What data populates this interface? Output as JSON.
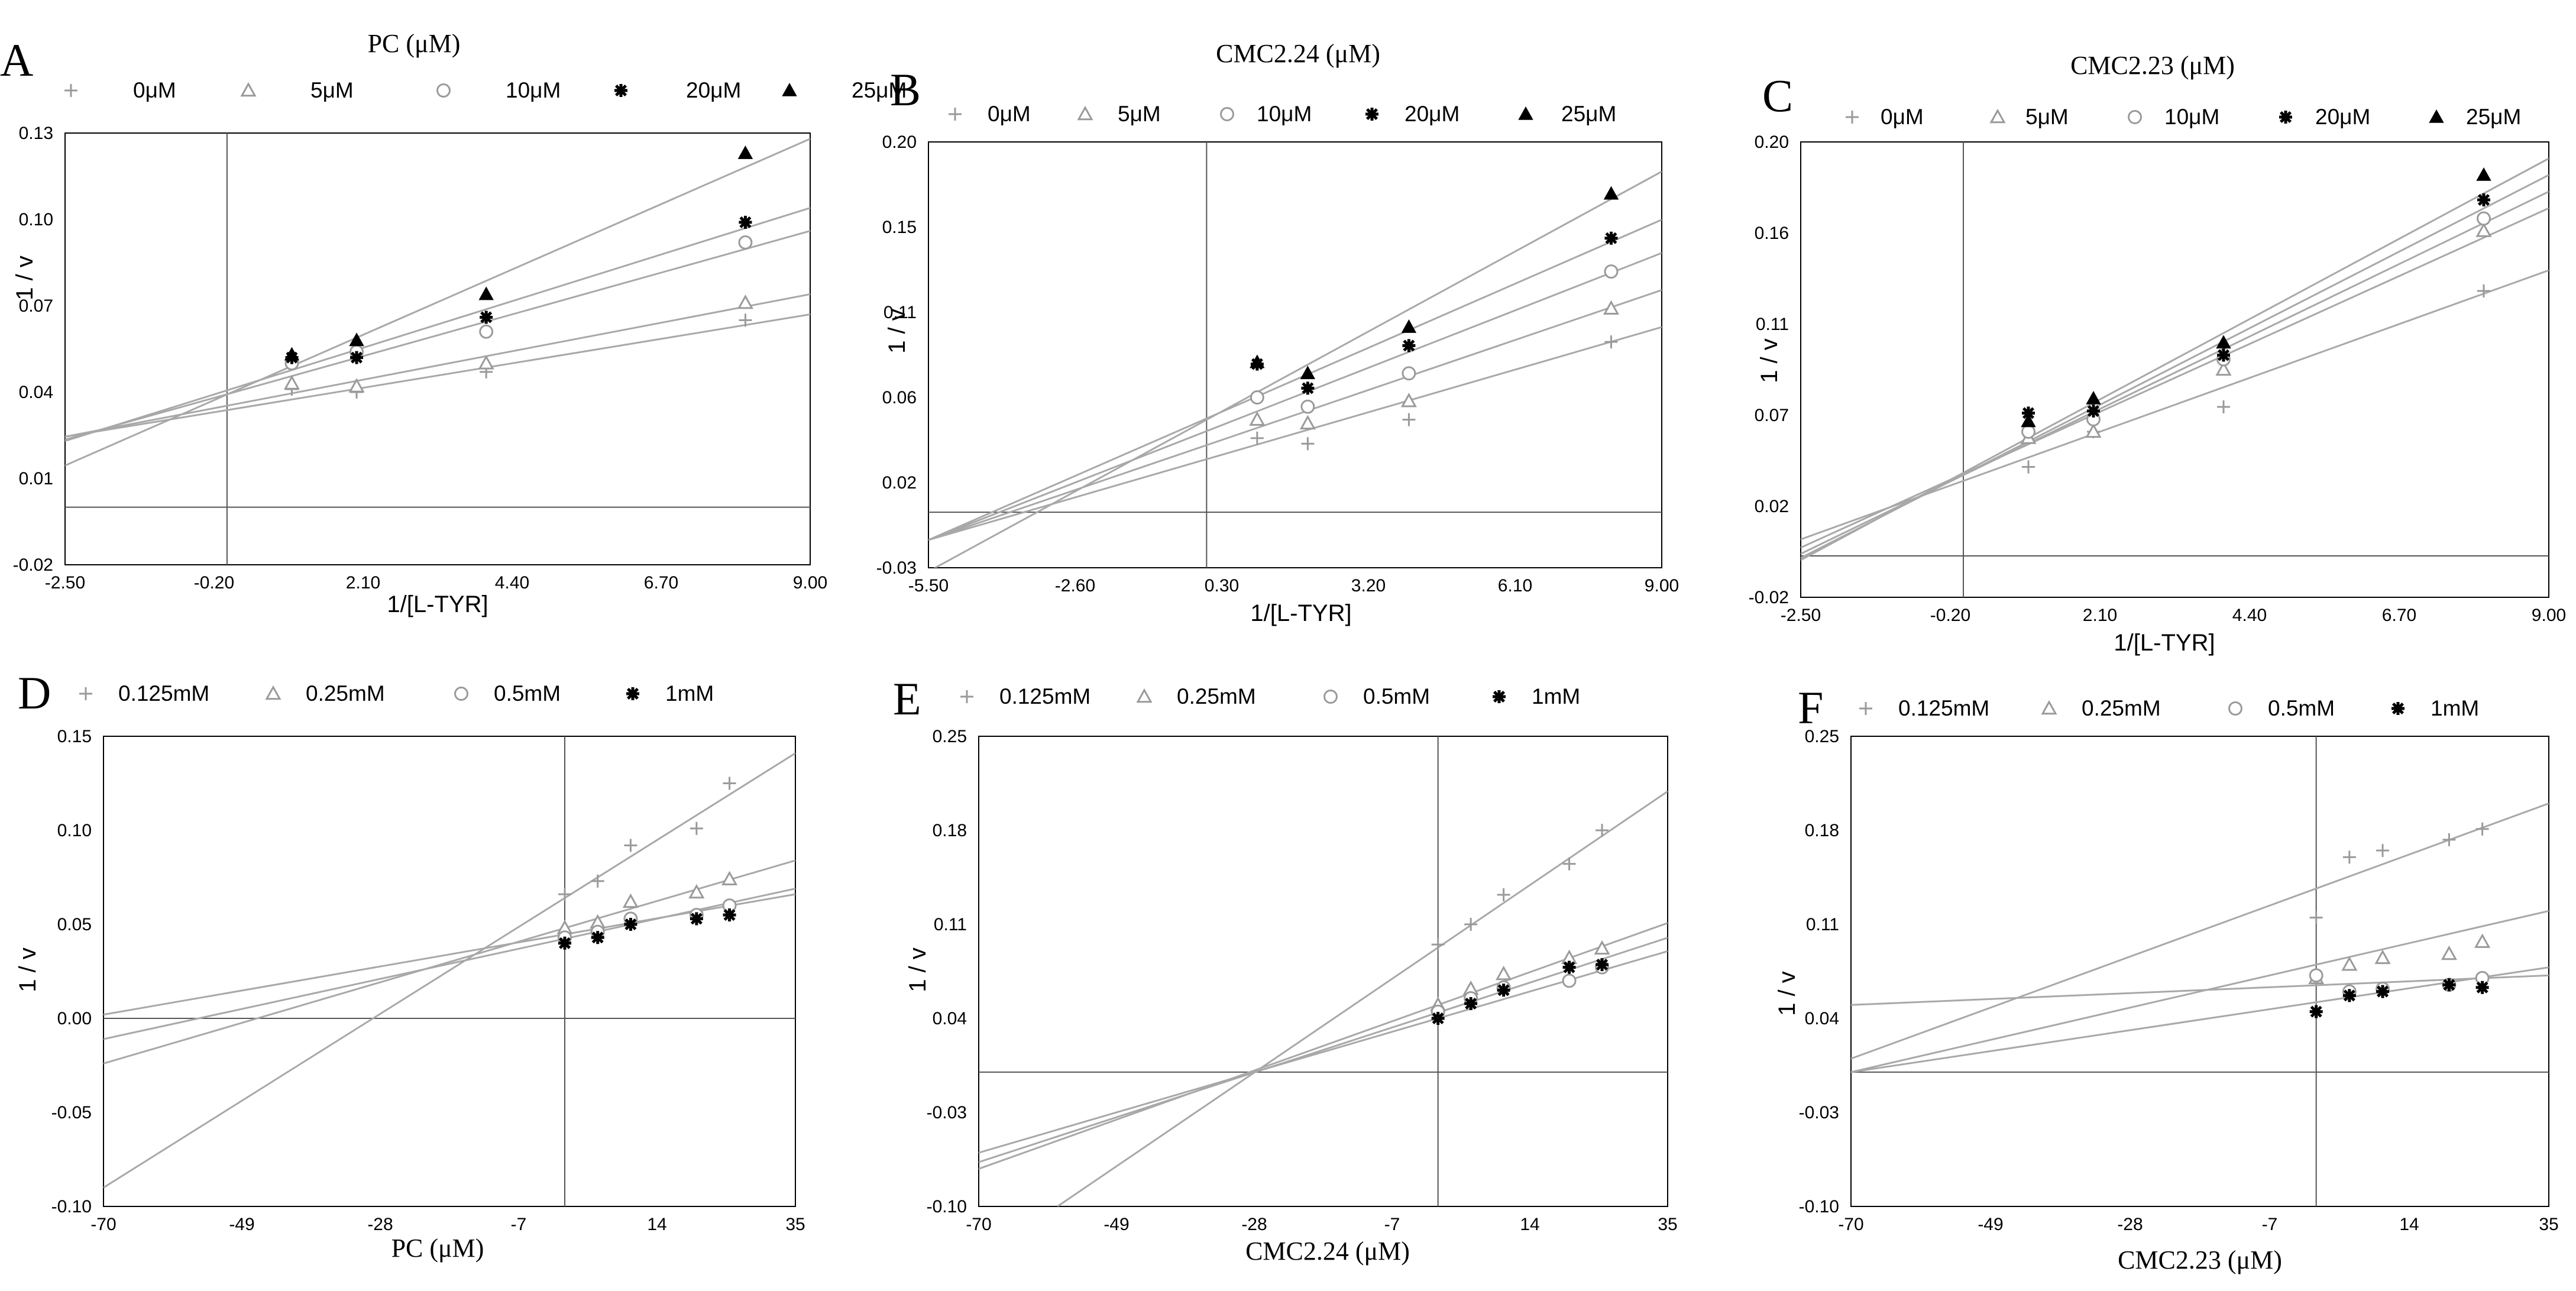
{
  "chart_data": [
    {
      "letter": "A",
      "type": "scatter",
      "title": "PC (μM)",
      "xlabel": "1/[L-TYR]",
      "ylabel": "1 / v",
      "xlim": [
        -2.5,
        9.0
      ],
      "ylim": [
        -0.02,
        0.13
      ],
      "xticks": [
        "-2.50",
        "-0.20",
        "2.10",
        "4.40",
        "6.70",
        "9.00"
      ],
      "yticks": [
        "-0.02",
        "0.01",
        "0.04",
        "0.07",
        "0.10",
        "0.13"
      ],
      "x_ref": 0.0,
      "y_ref": 0.0,
      "x": [
        1.0,
        2.0,
        4.0,
        8.0
      ],
      "series": [
        {
          "name": "0μM",
          "marker": "plus",
          "values": [
            0.041,
            0.04,
            0.047,
            0.065
          ],
          "line": [
            -2.5,
            0.0245,
            9.0,
            0.067
          ]
        },
        {
          "name": "5μM",
          "marker": "triangle",
          "values": [
            0.043,
            0.042,
            0.05,
            0.071
          ],
          "line": [
            -2.5,
            0.0245,
            9.0,
            0.074
          ]
        },
        {
          "name": "10μM",
          "marker": "circle",
          "values": [
            0.05,
            0.054,
            0.061,
            0.092
          ],
          "line": [
            -2.5,
            0.0235,
            9.0,
            0.096
          ]
        },
        {
          "name": "20μM",
          "marker": "star",
          "values": [
            0.052,
            0.052,
            0.066,
            0.099
          ],
          "line": [
            -2.5,
            0.023,
            9.0,
            0.104
          ]
        },
        {
          "name": "25μM",
          "marker": "filled-triangle",
          "values": [
            0.053,
            0.058,
            0.074,
            0.123
          ],
          "line": [
            -2.5,
            0.0145,
            9.0,
            0.128
          ]
        }
      ]
    },
    {
      "letter": "B",
      "type": "scatter",
      "title": "CMC2.24 (μM)",
      "xlabel": "1/[L-TYR]",
      "ylabel": "1 / v",
      "xlim": [
        -5.5,
        9.0
      ],
      "ylim": [
        -0.03,
        0.2
      ],
      "xticks": [
        "-5.50",
        "-2.60",
        "0.30",
        "3.20",
        "6.10",
        "9.00"
      ],
      "yticks": [
        "-0.03",
        "0.02",
        "0.06",
        "0.11",
        "0.15",
        "0.20"
      ],
      "x_ref": 0.0,
      "y_ref": 0.0,
      "x": [
        1.0,
        2.0,
        4.0,
        8.0
      ],
      "series": [
        {
          "name": "0μM",
          "marker": "plus",
          "values": [
            0.04,
            0.037,
            0.05,
            0.092
          ],
          "line": [
            -5.5,
            -0.015,
            9.0,
            0.1
          ]
        },
        {
          "name": "5μM",
          "marker": "triangle",
          "values": [
            0.05,
            0.048,
            0.06,
            0.11
          ],
          "line": [
            -5.5,
            -0.015,
            9.0,
            0.12
          ]
        },
        {
          "name": "10μM",
          "marker": "circle",
          "values": [
            0.062,
            0.057,
            0.075,
            0.13
          ],
          "line": [
            -5.5,
            -0.015,
            9.0,
            0.14
          ]
        },
        {
          "name": "20μM",
          "marker": "star",
          "values": [
            0.08,
            0.067,
            0.09,
            0.148
          ],
          "line": [
            -5.5,
            -0.015,
            9.0,
            0.158
          ]
        },
        {
          "name": "25μM",
          "marker": "filled-triangle",
          "values": [
            0.081,
            0.075,
            0.1,
            0.172
          ],
          "line": [
            -5.5,
            -0.032,
            9.0,
            0.184
          ]
        }
      ]
    },
    {
      "letter": "C",
      "type": "scatter",
      "title": "CMC2.23 (μM)",
      "xlabel": "1/[L-TYR]",
      "ylabel": "1 / v",
      "xlim": [
        -2.5,
        9.0
      ],
      "ylim": [
        -0.02,
        0.2
      ],
      "xticks": [
        "-2.50",
        "-0.20",
        "2.10",
        "4.40",
        "6.70",
        "9.00"
      ],
      "yticks": [
        "-0.02",
        "0.02",
        "0.07",
        "0.11",
        "0.16",
        "0.20"
      ],
      "x_ref": 0.0,
      "y_ref": 0.0,
      "x": [
        1.0,
        2.0,
        4.0,
        8.0
      ],
      "series": [
        {
          "name": "0μM",
          "marker": "plus",
          "values": [
            0.043,
            0.06,
            0.072,
            0.128
          ],
          "line": [
            -2.5,
            0.008,
            9.0,
            0.138
          ]
        },
        {
          "name": "5μM",
          "marker": "triangle",
          "values": [
            0.057,
            0.06,
            0.09,
            0.157
          ],
          "line": [
            -2.5,
            0.004,
            9.0,
            0.168
          ]
        },
        {
          "name": "10μM",
          "marker": "circle",
          "values": [
            0.06,
            0.066,
            0.095,
            0.163
          ],
          "line": [
            -2.5,
            0.001,
            9.0,
            0.176
          ]
        },
        {
          "name": "20μM",
          "marker": "star",
          "values": [
            0.069,
            0.07,
            0.097,
            0.172
          ],
          "line": [
            -2.5,
            -0.001,
            9.0,
            0.184
          ]
        },
        {
          "name": "25μM",
          "marker": "filled-triangle",
          "values": [
            0.065,
            0.076,
            0.103,
            0.184
          ],
          "line": [
            -2.5,
            -0.002,
            9.0,
            0.192
          ]
        }
      ]
    },
    {
      "letter": "D",
      "type": "scatter",
      "title": "",
      "xlabel": "PC (μM)",
      "ylabel": "1 / v",
      "xlim": [
        -70,
        35
      ],
      "ylim": [
        -0.1,
        0.15
      ],
      "xticks": [
        "-70",
        "-49",
        "-28",
        "-7",
        "14",
        "35"
      ],
      "yticks": [
        "-0.10",
        "-0.05",
        "0.00",
        "0.05",
        "0.10",
        "0.15"
      ],
      "x_ref": 0.0,
      "y_ref": 0.0,
      "x": [
        0,
        5,
        10,
        20,
        25
      ],
      "series": [
        {
          "name": "0.125mM",
          "marker": "plus",
          "values": [
            0.066,
            0.073,
            0.092,
            0.101,
            0.125
          ],
          "line": [
            -70,
            -0.09,
            35,
            0.141
          ]
        },
        {
          "name": "0.25mM",
          "marker": "triangle",
          "values": [
            0.048,
            0.051,
            0.062,
            0.067,
            0.074
          ],
          "line": [
            -70,
            -0.024,
            35,
            0.084
          ]
        },
        {
          "name": "0.5mM",
          "marker": "circle",
          "values": [
            0.043,
            0.046,
            0.053,
            0.055,
            0.06
          ],
          "line": [
            -70,
            -0.011,
            35,
            0.069
          ]
        },
        {
          "name": "1mM",
          "marker": "star",
          "values": [
            0.04,
            0.043,
            0.05,
            0.053,
            0.055
          ],
          "line": [
            -70,
            0.002,
            35,
            0.066
          ]
        }
      ]
    },
    {
      "letter": "E",
      "type": "scatter",
      "title": "",
      "xlabel": "CMC2.24 (μM)",
      "ylabel": "1 / v",
      "xlim": [
        -70,
        35
      ],
      "ylim": [
        -0.1,
        0.25
      ],
      "xticks": [
        "-70",
        "-49",
        "-28",
        "-7",
        "14",
        "35"
      ],
      "yticks": [
        "-0.10",
        "-0.03",
        "0.04",
        "0.11",
        "0.18",
        "0.25"
      ],
      "x_ref": 0.0,
      "y_ref": 0.0,
      "x": [
        0,
        5,
        10,
        20,
        25
      ],
      "series": [
        {
          "name": "0.125mM",
          "marker": "plus",
          "values": [
            0.095,
            0.11,
            0.132,
            0.155,
            0.18
          ],
          "line": [
            -58,
            -0.1,
            35,
            0.209
          ]
        },
        {
          "name": "0.25mM",
          "marker": "triangle",
          "values": [
            0.05,
            0.062,
            0.073,
            0.085,
            0.092
          ],
          "line": [
            -70,
            -0.072,
            35,
            0.111
          ]
        },
        {
          "name": "0.5mM",
          "marker": "circle",
          "values": [
            0.045,
            0.055,
            0.063,
            0.068,
            0.078
          ],
          "line": [
            -70,
            -0.067,
            35,
            0.1
          ]
        },
        {
          "name": "1mM",
          "marker": "star",
          "values": [
            0.04,
            0.051,
            0.061,
            0.078,
            0.08
          ],
          "line": [
            -70,
            -0.06,
            35,
            0.09
          ]
        }
      ]
    },
    {
      "letter": "F",
      "type": "scatter",
      "title": "",
      "xlabel": "CMC2.23 (μM)",
      "ylabel": "1 / v",
      "xlim": [
        -70,
        35
      ],
      "ylim": [
        -0.1,
        0.25
      ],
      "xticks": [
        "-70",
        "-49",
        "-28",
        "-7",
        "14",
        "35"
      ],
      "yticks": [
        "-0.10",
        "-0.03",
        "0.04",
        "0.11",
        "0.18",
        "0.25"
      ],
      "x_ref": 0.0,
      "y_ref": 0.0,
      "x": [
        0,
        5,
        10,
        20,
        25
      ],
      "series": [
        {
          "name": "0.125mM",
          "marker": "plus",
          "values": [
            0.115,
            0.16,
            0.165,
            0.173,
            0.181
          ],
          "line": [
            -70,
            0.01,
            35,
            0.2
          ]
        },
        {
          "name": "0.25mM",
          "marker": "triangle",
          "values": [
            0.07,
            0.08,
            0.085,
            0.088,
            0.097
          ],
          "line": [
            -70,
            0.0,
            35,
            0.12
          ]
        },
        {
          "name": "0.5mM",
          "marker": "circle",
          "values": [
            0.072,
            0.06,
            0.062,
            0.065,
            0.07
          ],
          "line": [
            -70,
            0.0,
            35,
            0.078
          ]
        },
        {
          "name": "1mM",
          "marker": "star",
          "values": [
            0.045,
            0.057,
            0.06,
            0.065,
            0.063
          ],
          "line": [
            -70,
            0.05,
            35,
            0.072
          ]
        }
      ]
    }
  ]
}
